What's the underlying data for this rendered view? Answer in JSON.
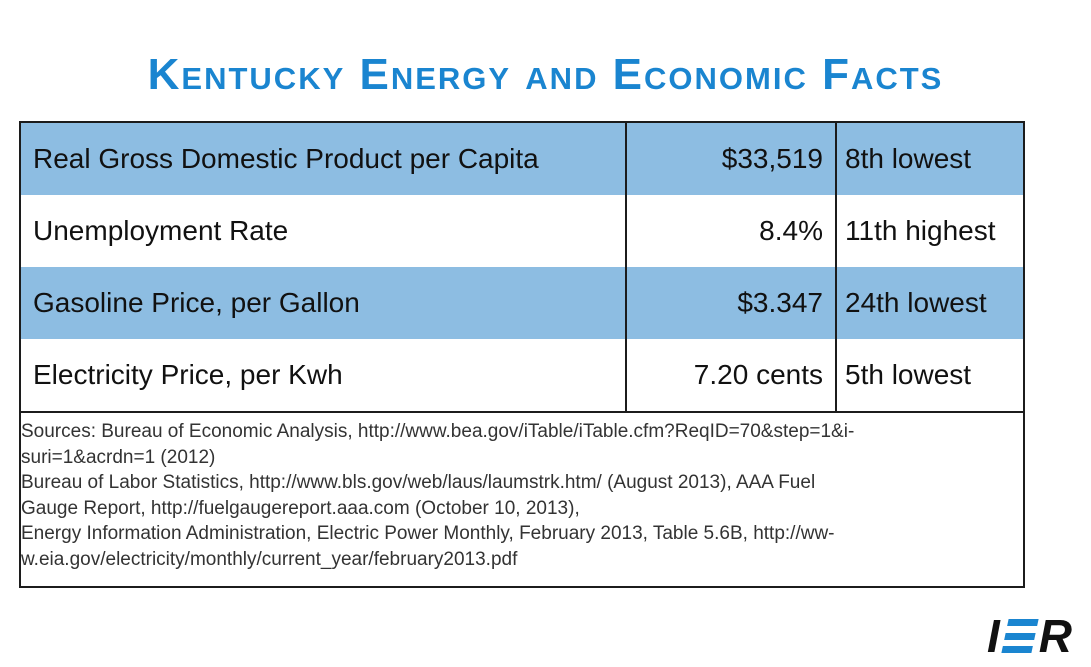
{
  "title": "Kentucky Energy and Economic Facts",
  "colors": {
    "title": "#1a85d0",
    "shaded_row": "#8dbde2",
    "border": "#1c1c1c"
  },
  "rows": [
    {
      "label": "Real Gross Domestic Product per Capita",
      "value": "$33,519",
      "rank": "8th lowest"
    },
    {
      "label": "Unemployment Rate",
      "value": "8.4%",
      "rank": "11th highest"
    },
    {
      "label": "Gasoline Price, per Gallon",
      "value": "$3.347",
      "rank": "24th lowest"
    },
    {
      "label": "Electricity Price, per Kwh",
      "value": "7.20 cents",
      "rank": "5th lowest"
    }
  ],
  "sources": [
    "Sources: Bureau of Economic Analysis,  http://www.bea.gov/iTable/iTable.cfm?ReqID=70&step=1&i-",
    "suri=1&acrdn=1 (2012)",
    "Bureau of Labor Statistics, http://www.bls.gov/web/laus/laumstrk.htm/ (August 2013), AAA Fuel",
    "Gauge Report, http://fuelgaugereport.aaa.com  (October 10, 2013),",
    "Energy Information Administration, Electric Power Monthly, February 2013, Table 5.6B, http://ww-",
    "w.eia.gov/electricity/monthly/current_year/february2013.pdf"
  ],
  "logo": {
    "left": "I",
    "right": "R",
    "icon": "ier-e-stripes-icon"
  }
}
